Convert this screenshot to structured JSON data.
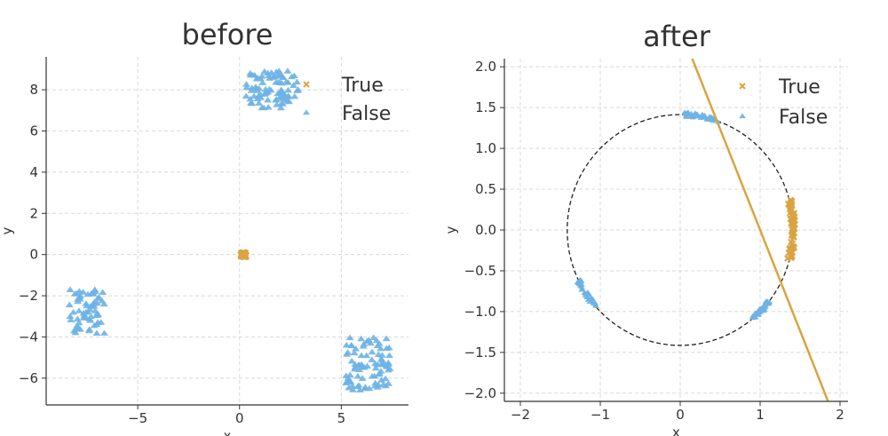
{
  "colors": {
    "true": "#D9A441",
    "false": "#6EB2E4",
    "circle": "#222222",
    "grid": "#d8d8d8",
    "axis": "#333333"
  },
  "chart_data": [
    {
      "type": "scatter",
      "title": "before",
      "xlabel": "x",
      "ylabel": "y",
      "xlim": [
        -9.5,
        8.3
      ],
      "ylim": [
        -7.3,
        9.6
      ],
      "xticks": [
        -5,
        0,
        5
      ],
      "xtick_labels": [
        "−5",
        "0",
        "5"
      ],
      "yticks": [
        -6,
        -4,
        -2,
        0,
        2,
        4,
        6,
        8
      ],
      "ytick_labels": [
        "−6",
        "−4",
        "−2",
        "0",
        "2",
        "4",
        "6",
        "8"
      ],
      "grid": true,
      "legend": {
        "position": "top-right",
        "entries": [
          {
            "label": "True",
            "marker": "x"
          },
          {
            "label": "False",
            "marker": "triangle"
          }
        ]
      },
      "series": [
        {
          "name": "True",
          "marker": "x",
          "clusters": [
            {
              "center": [
                0.2,
                0.0
              ],
              "spread": [
                0.12,
                0.1
              ],
              "count": 25
            }
          ]
        },
        {
          "name": "False",
          "marker": "triangle",
          "clusters": [
            {
              "center": [
                1.6,
                8.0
              ],
              "spread": [
                1.3,
                0.9
              ],
              "count": 90
            },
            {
              "center": [
                -7.5,
                -2.8
              ],
              "spread": [
                0.9,
                1.1
              ],
              "count": 65
            },
            {
              "center": [
                6.3,
                -5.3
              ],
              "spread": [
                1.1,
                1.3
              ],
              "count": 85
            }
          ]
        }
      ]
    },
    {
      "type": "scatter",
      "title": "after",
      "xlabel": "x",
      "ylabel": "y",
      "xlim": [
        -2.2,
        2.1
      ],
      "ylim": [
        -2.1,
        2.1
      ],
      "xticks": [
        -2,
        -1,
        0,
        1,
        2
      ],
      "xtick_labels": [
        "−2",
        "−1",
        "0",
        "1",
        "2"
      ],
      "yticks": [
        -2.0,
        -1.5,
        -1.0,
        -0.5,
        0.0,
        0.5,
        1.0,
        1.5,
        2.0
      ],
      "ytick_labels": [
        "−2.0",
        "−1.5",
        "−1.0",
        "−0.5",
        "0.0",
        "0.5",
        "1.0",
        "1.5",
        "2.0"
      ],
      "grid": true,
      "circle": {
        "center": [
          0,
          0
        ],
        "radius": 1.414,
        "style": "dashed"
      },
      "decision_line": {
        "points": [
          [
            0.15,
            2.1
          ],
          [
            1.85,
            -2.1
          ]
        ]
      },
      "legend": {
        "position": "top-right",
        "entries": [
          {
            "label": "True",
            "marker": "x"
          },
          {
            "label": "False",
            "marker": "triangle"
          }
        ]
      },
      "series": [
        {
          "name": "True",
          "marker": "x",
          "arcs": [
            {
              "angle_deg": [
                -15,
                15
              ],
              "count": 60
            }
          ]
        },
        {
          "name": "False",
          "marker": "triangle",
          "arcs": [
            {
              "angle_deg": [
                70,
                88
              ],
              "count": 60
            },
            {
              "angle_deg": [
                -50,
                -38
              ],
              "count": 45
            },
            {
              "angle_deg": [
                206,
                222
              ],
              "count": 45
            }
          ]
        }
      ]
    }
  ]
}
